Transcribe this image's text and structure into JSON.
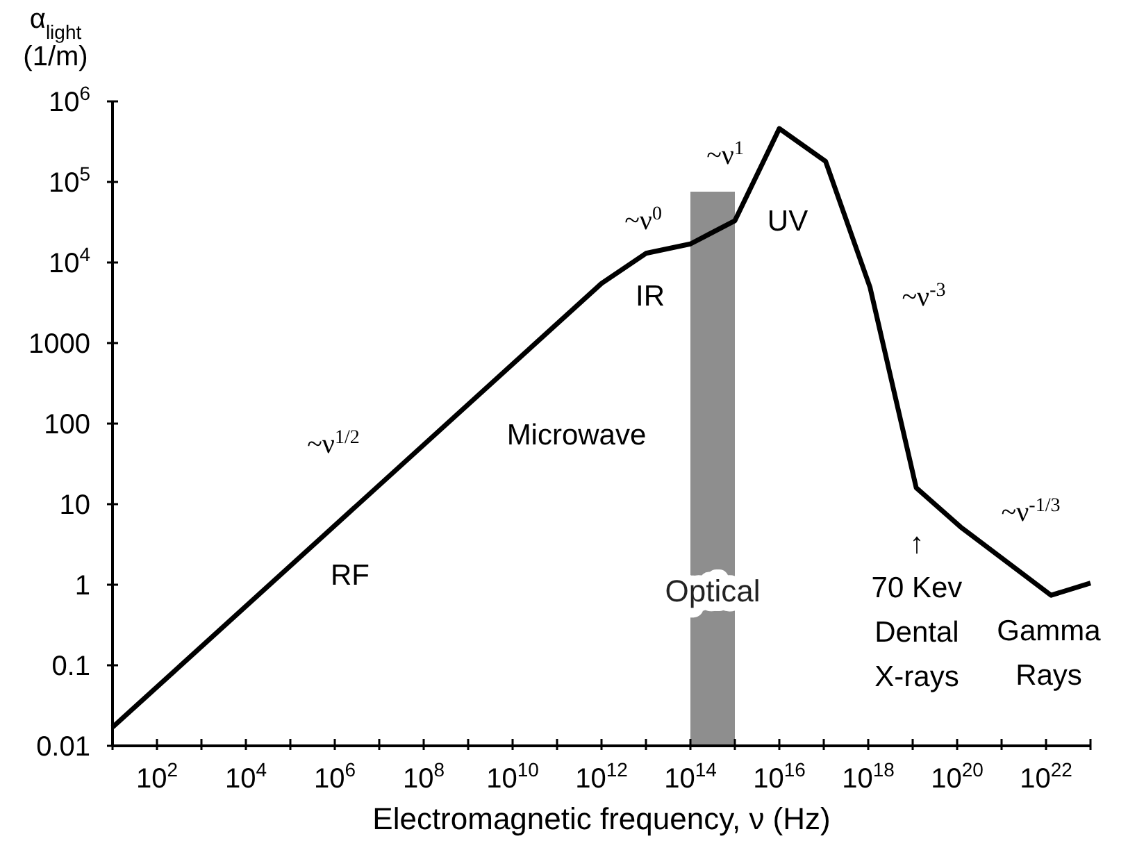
{
  "chart_data": {
    "type": "line",
    "xlabel": "Electromagnetic frequency, ν (Hz)",
    "ylabel": "α$_{light}$\n(1/m)",
    "log": "xy",
    "xlim": [
      10,
      1e+23
    ],
    "ylim": [
      0.01,
      1000000
    ],
    "xticks": [
      {
        "value": 10,
        "label": null
      },
      {
        "value": 100,
        "label": "10$^{2}$"
      },
      {
        "value": 1000,
        "label": null
      },
      {
        "value": 10000,
        "label": "10$^{4}$"
      },
      {
        "value": 100000,
        "label": null
      },
      {
        "value": 1000000,
        "label": "10$^{6}$"
      },
      {
        "value": 10000000.0,
        "label": null
      },
      {
        "value": 100000000.0,
        "label": "10$^{8}$"
      },
      {
        "value": 1000000000.0,
        "label": null
      },
      {
        "value": 10000000000.0,
        "label": "10$^{10}$"
      },
      {
        "value": 100000000000.0,
        "label": null
      },
      {
        "value": 1000000000000.0,
        "label": "10$^{12}$"
      },
      {
        "value": 10000000000000.0,
        "label": null
      },
      {
        "value": 100000000000000.0,
        "label": "10$^{14}$"
      },
      {
        "value": 1000000000000000.0,
        "label": null
      },
      {
        "value": 1e+16,
        "label": "10$^{16}$"
      },
      {
        "value": 1e+17,
        "label": null
      },
      {
        "value": 1e+18,
        "label": "10$^{18}$"
      },
      {
        "value": 1e+19,
        "label": null
      },
      {
        "value": 1e+20,
        "label": "10$^{20}$"
      },
      {
        "value": 1e+21,
        "label": null
      },
      {
        "value": 1e+22,
        "label": "10$^{22}$"
      },
      {
        "value": 1e+23,
        "label": null
      }
    ],
    "yticks": [
      0.01,
      0.1,
      1,
      10,
      100,
      1000,
      {
        "value": 10000,
        "label": "10$^{4}$"
      },
      {
        "value": 100000,
        "label": "10$^{5}$"
      },
      {
        "value": 1000000,
        "label": "10$^{6}$"
      }
    ],
    "series": [
      {
        "color": "#000000",
        "x": [
          10,
          1000000000000.0,
          10000000000000.0,
          100000000000000.0,
          1000000000000000.0,
          1e+16,
          1.1e+17,
          1.1e+18,
          1.2e+19,
          1.2e+20,
          1.3e+22,
          1e+23
        ],
        "values": [
          0.017,
          5500,
          13000,
          17000,
          33000,
          460000,
          180000,
          4900,
          16,
          5.2,
          0.74,
          1.05
        ]
      }
    ],
    "bands": [
      {
        "axis": "x",
        "from": 100000000000000.0,
        "to": 1000000000000000.0,
        "label": "Optical",
        "color": "#7a7a7a"
      }
    ],
    "annotations": [
      "~ν$^{1/2}$",
      "RF",
      "Microwave",
      "IR",
      "~ν$^{0}$",
      "~ν$^{1}$",
      "UV",
      "~ν$^{-3}$",
      "~ν$^{-1/3}$",
      "↑\n70 Kev\nDental\nX-rays",
      "Gamma\nRays"
    ]
  }
}
